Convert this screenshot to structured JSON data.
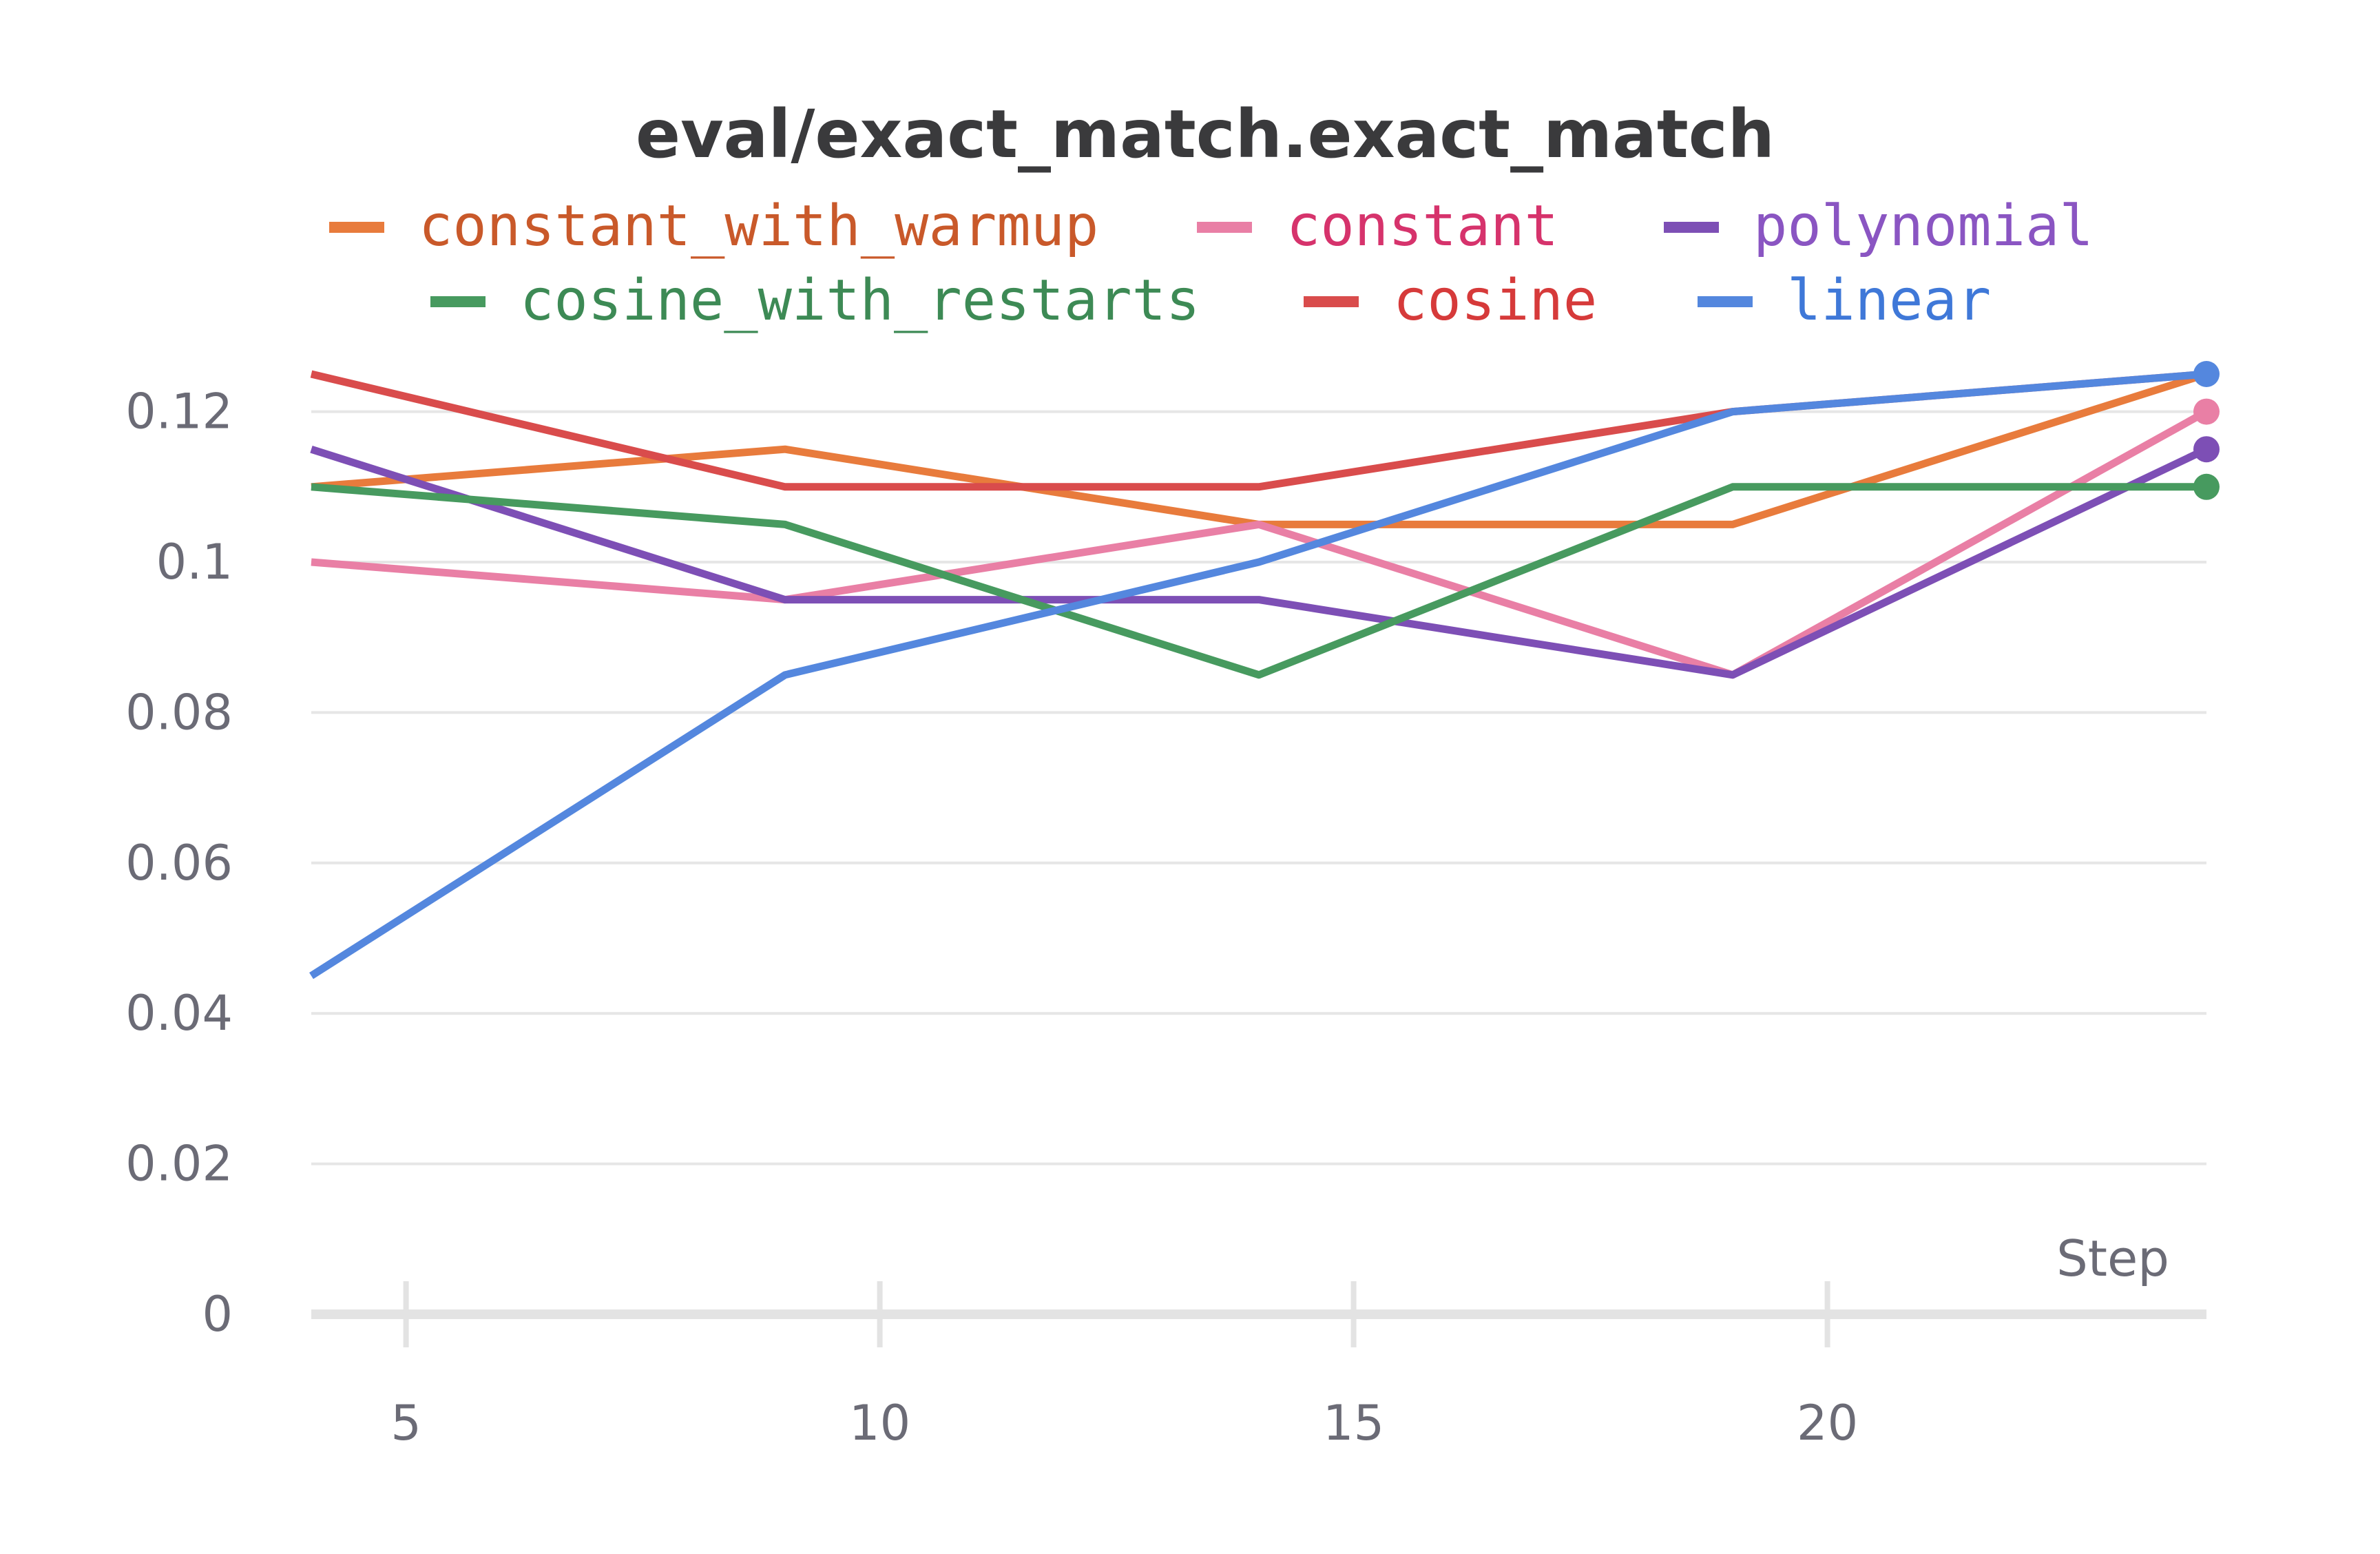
{
  "chart_data": {
    "type": "line",
    "title": "eval/exact_match.exact_match",
    "xlabel": "Step",
    "ylabel": "",
    "x": [
      4,
      9,
      14,
      19,
      24
    ],
    "xlim": [
      4,
      24
    ],
    "ylim": [
      0,
      0.125
    ],
    "xticks": [
      5,
      10,
      15,
      20
    ],
    "yticks": [
      0,
      0.02,
      0.04,
      0.06,
      0.08,
      0.1,
      0.12
    ],
    "ytick_labels": [
      "0",
      "0.02",
      "0.04",
      "0.06",
      "0.08",
      "0.1",
      "0.12"
    ],
    "grid": true,
    "legend_position": "top",
    "series": [
      {
        "name": "constant_with_warmup",
        "color": "#e87b3c",
        "text_color": "#c9592a",
        "values": [
          0.11,
          0.115,
          0.105,
          0.105,
          0.125
        ],
        "end_marker": false
      },
      {
        "name": "constant",
        "color": "#e97fa5",
        "text_color": "#d6336c",
        "values": [
          0.1,
          0.095,
          0.105,
          0.085,
          0.12
        ],
        "end_marker": true
      },
      {
        "name": "polynomial",
        "color": "#7d4fb5",
        "text_color": "#8a55c2",
        "values": [
          0.115,
          0.095,
          0.095,
          0.085,
          0.115
        ],
        "end_marker": true
      },
      {
        "name": "cosine_with_restarts",
        "color": "#479a5f",
        "text_color": "#3d8a55",
        "values": [
          0.11,
          0.105,
          0.085,
          0.11,
          0.11
        ],
        "end_marker": true
      },
      {
        "name": "cosine",
        "color": "#d94c4c",
        "text_color": "#d63a3a",
        "values": [
          0.125,
          0.11,
          0.11,
          0.12,
          0.125
        ],
        "end_marker": false
      },
      {
        "name": "linear",
        "color": "#5487de",
        "text_color": "#3f78d8",
        "values": [
          0.045,
          0.085,
          0.1,
          0.12,
          0.125
        ],
        "end_marker": true
      }
    ]
  }
}
